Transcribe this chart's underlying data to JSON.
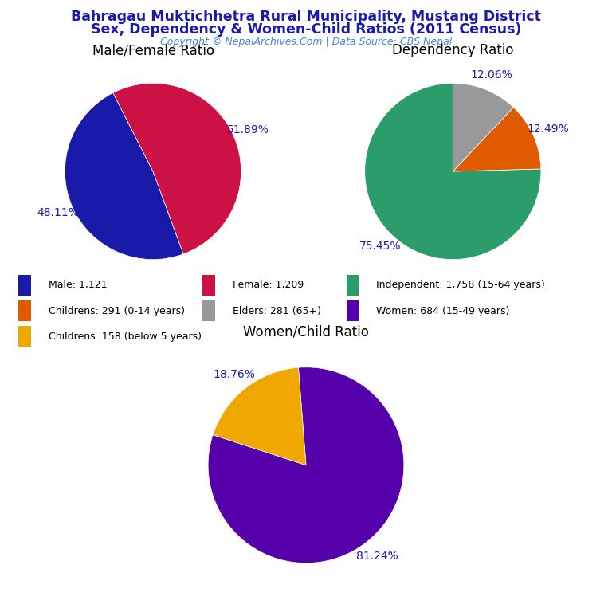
{
  "title_line1": "Bahragau Muktichhetra Rural Municipality, Mustang District",
  "title_line2": "Sex, Dependency & Women-Child Ratios (2011 Census)",
  "copyright": "Copyright © NepalArchives.Com | Data Source: CBS Nepal",
  "title_color": "#1a1aaa",
  "copyright_color": "#4488dd",
  "pie1_title": "Male/Female Ratio",
  "pie1_values": [
    48.11,
    51.89
  ],
  "pie1_colors": [
    "#1a1aaa",
    "#cc1144"
  ],
  "pie1_labels": [
    "48.11%",
    "51.89%"
  ],
  "pie1_startangle": 117,
  "pie2_title": "Dependency Ratio",
  "pie2_values": [
    75.45,
    12.49,
    12.06
  ],
  "pie2_colors": [
    "#2a9d6a",
    "#e05a00",
    "#999999"
  ],
  "pie2_labels": [
    "75.45%",
    "12.49%",
    "12.06%"
  ],
  "pie2_startangle": 90,
  "pie3_title": "Women/Child Ratio",
  "pie3_values": [
    81.24,
    18.76
  ],
  "pie3_colors": [
    "#5500aa",
    "#f0a800"
  ],
  "pie3_labels": [
    "81.24%",
    "18.76%"
  ],
  "pie3_startangle": 162,
  "legend_items": [
    {
      "label": "Male: 1,121",
      "color": "#1a1aaa"
    },
    {
      "label": "Female: 1,209",
      "color": "#cc1144"
    },
    {
      "label": "Independent: 1,758 (15-64 years)",
      "color": "#2a9d6a"
    },
    {
      "label": "Childrens: 291 (0-14 years)",
      "color": "#e05a00"
    },
    {
      "label": "Elders: 281 (65+)",
      "color": "#999999"
    },
    {
      "label": "Women: 684 (15-49 years)",
      "color": "#5500aa"
    },
    {
      "label": "Childrens: 158 (below 5 years)",
      "color": "#f0a800"
    }
  ],
  "label_color": "#1a1aaa",
  "label_fontsize": 10,
  "label_dist": 1.18
}
